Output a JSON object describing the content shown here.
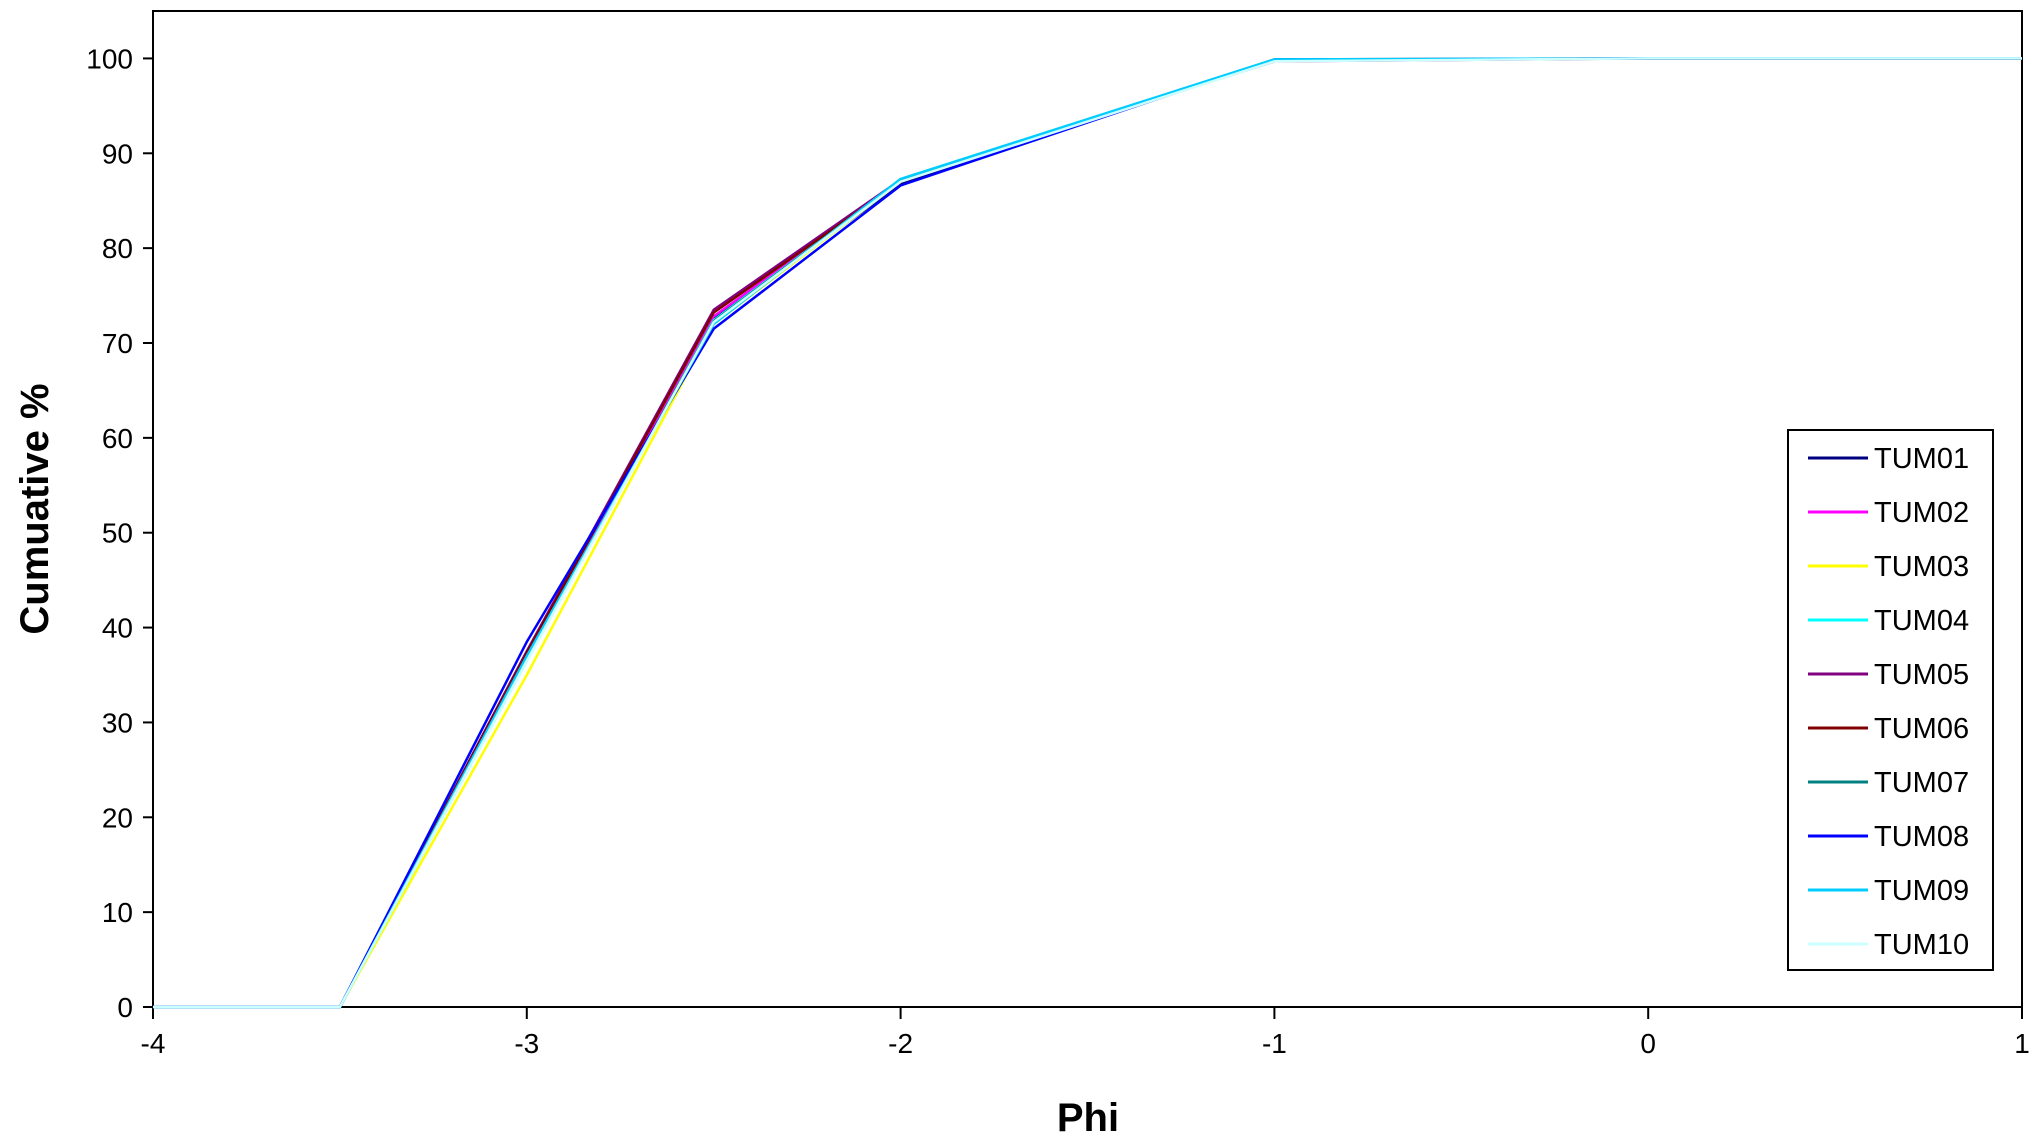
{
  "chart_data": {
    "type": "line",
    "title": "",
    "xlabel": "Phi",
    "ylabel": "Cumuative %",
    "xlim": [
      -4,
      1
    ],
    "ylim": [
      0,
      105
    ],
    "xticks": [
      -4,
      -3,
      -2,
      -1,
      0,
      1
    ],
    "yticks": [
      0,
      10,
      20,
      30,
      40,
      50,
      60,
      70,
      80,
      90,
      100
    ],
    "grid": false,
    "legend_position": "right",
    "x": [
      -4,
      -3.5,
      -3,
      -2.5,
      -2,
      -1,
      0,
      1
    ],
    "series": [
      {
        "name": "TUM01",
        "color": "#000080",
        "values": [
          0,
          0,
          37.5,
          72.5,
          86.8,
          99.8,
          100,
          100
        ]
      },
      {
        "name": "TUM02",
        "color": "#FF00FF",
        "values": [
          0,
          0,
          37.0,
          72.8,
          87.0,
          99.8,
          100,
          100
        ]
      },
      {
        "name": "TUM03",
        "color": "#FFFF00",
        "values": [
          0,
          0,
          35.0,
          72.0,
          87.0,
          99.9,
          100,
          100
        ]
      },
      {
        "name": "TUM04",
        "color": "#00FFFF",
        "values": [
          0,
          0,
          36.5,
          72.4,
          87.1,
          99.8,
          100,
          100
        ]
      },
      {
        "name": "TUM05",
        "color": "#800080",
        "values": [
          0,
          0,
          37.5,
          73.5,
          87.2,
          99.7,
          100,
          100
        ]
      },
      {
        "name": "TUM06",
        "color": "#800000",
        "values": [
          0,
          0,
          37.3,
          73.2,
          87.0,
          99.8,
          100,
          100
        ]
      },
      {
        "name": "TUM07",
        "color": "#008080",
        "values": [
          0,
          0,
          36.8,
          72.3,
          87.1,
          99.8,
          100,
          100
        ]
      },
      {
        "name": "TUM08",
        "color": "#0000FF",
        "values": [
          0,
          0,
          38.5,
          71.5,
          86.6,
          99.9,
          100,
          100
        ]
      },
      {
        "name": "TUM09",
        "color": "#00CCFF",
        "values": [
          0,
          0,
          37.0,
          72.0,
          87.3,
          99.9,
          100,
          100
        ]
      },
      {
        "name": "TUM10",
        "color": "#CCFFFF",
        "values": [
          0,
          0,
          36.5,
          72.2,
          87.0,
          99.7,
          100,
          100
        ]
      }
    ]
  }
}
